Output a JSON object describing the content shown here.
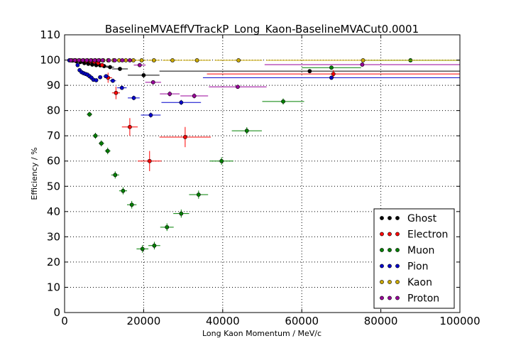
{
  "chart_data": {
    "type": "scatter",
    "title": "BaselineMVAEffVTrackP_Long_Kaon-BaselineMVACut0.0001",
    "xlabel": "Long Kaon Momentum / MeV/c",
    "ylabel": "Efficiency / %",
    "xlim": [
      0,
      100000
    ],
    "ylim": [
      0,
      110
    ],
    "xticks": [
      0,
      20000,
      40000,
      60000,
      80000,
      100000
    ],
    "xtick_labels": [
      "0",
      "20000",
      "40000",
      "60000",
      "80000",
      "100000"
    ],
    "yticks": [
      0,
      10,
      20,
      30,
      40,
      50,
      60,
      70,
      80,
      90,
      100,
      110
    ],
    "ytick_labels": [
      "0",
      "10",
      "20",
      "30",
      "40",
      "50",
      "60",
      "70",
      "80",
      "90",
      "100",
      "110"
    ],
    "grid": true,
    "legend_position": "lower-right",
    "series": [
      {
        "name": "Ghost",
        "color": "#000000",
        "points": [
          {
            "x": 2000,
            "y": 99.8,
            "xerr": 500,
            "yerr": 0.2
          },
          {
            "x": 3000,
            "y": 99.5,
            "xerr": 500,
            "yerr": 0.2
          },
          {
            "x": 4000,
            "y": 99.2,
            "xerr": 500,
            "yerr": 0.2
          },
          {
            "x": 5000,
            "y": 98.8,
            "xerr": 500,
            "yerr": 0.3
          },
          {
            "x": 6000,
            "y": 98.5,
            "xerr": 500,
            "yerr": 0.3
          },
          {
            "x": 7000,
            "y": 98.2,
            "xerr": 500,
            "yerr": 0.3
          },
          {
            "x": 8000,
            "y": 98.0,
            "xerr": 500,
            "yerr": 0.3
          },
          {
            "x": 9000,
            "y": 97.9,
            "xerr": 500,
            "yerr": 0.3
          },
          {
            "x": 10000,
            "y": 97.6,
            "xerr": 1000,
            "yerr": 0.4
          },
          {
            "x": 11500,
            "y": 97.2,
            "xerr": 1000,
            "yerr": 0.5
          },
          {
            "x": 14000,
            "y": 96.5,
            "xerr": 2000,
            "yerr": 0.6
          },
          {
            "x": 20000,
            "y": 94.0,
            "xerr": 4000,
            "yerr": 0.8
          },
          {
            "x": 62000,
            "y": 95.6,
            "xerr": 38000,
            "yerr": 0.6
          }
        ]
      },
      {
        "name": "Electron",
        "color": "#ff0000",
        "points": [
          {
            "x": 1500,
            "y": 99.9,
            "xerr": 500,
            "yerr": 0.2
          },
          {
            "x": 2500,
            "y": 99.9,
            "xerr": 500,
            "yerr": 0.2
          },
          {
            "x": 3500,
            "y": 99.8,
            "xerr": 500,
            "yerr": 0.2
          },
          {
            "x": 4500,
            "y": 99.8,
            "xerr": 500,
            "yerr": 0.3
          },
          {
            "x": 5500,
            "y": 99.6,
            "xerr": 500,
            "yerr": 0.3
          },
          {
            "x": 6500,
            "y": 99.5,
            "xerr": 500,
            "yerr": 0.4
          },
          {
            "x": 7500,
            "y": 99.3,
            "xerr": 500,
            "yerr": 0.5
          },
          {
            "x": 8500,
            "y": 98.8,
            "xerr": 500,
            "yerr": 0.6
          },
          {
            "x": 9500,
            "y": 98.0,
            "xerr": 500,
            "yerr": 0.8
          },
          {
            "x": 11000,
            "y": 93.0,
            "xerr": 1000,
            "yerr": 2.0
          },
          {
            "x": 13000,
            "y": 87.0,
            "xerr": 1000,
            "yerr": 2.5
          },
          {
            "x": 16500,
            "y": 73.5,
            "xerr": 2000,
            "yerr": 3.5
          },
          {
            "x": 21500,
            "y": 60.0,
            "xerr": 3000,
            "yerr": 4.0
          },
          {
            "x": 30500,
            "y": 69.5,
            "xerr": 6500,
            "yerr": 4.0
          },
          {
            "x": 68000,
            "y": 94.5,
            "xerr": 32000,
            "yerr": 1.5
          }
        ]
      },
      {
        "name": "Muon",
        "color": "#008000",
        "points": [
          {
            "x": 6300,
            "y": 78.5,
            "xerr": 700,
            "yerr": 1.0
          },
          {
            "x": 7800,
            "y": 70.0,
            "xerr": 700,
            "yerr": 1.2
          },
          {
            "x": 9300,
            "y": 67.0,
            "xerr": 700,
            "yerr": 1.2
          },
          {
            "x": 10900,
            "y": 64.0,
            "xerr": 700,
            "yerr": 1.3
          },
          {
            "x": 12800,
            "y": 54.5,
            "xerr": 1000,
            "yerr": 1.4
          },
          {
            "x": 14800,
            "y": 48.2,
            "xerr": 1000,
            "yerr": 1.4
          },
          {
            "x": 17000,
            "y": 42.7,
            "xerr": 1200,
            "yerr": 1.5
          },
          {
            "x": 19700,
            "y": 25.2,
            "xerr": 1500,
            "yerr": 1.5
          },
          {
            "x": 22700,
            "y": 26.5,
            "xerr": 1500,
            "yerr": 1.5
          },
          {
            "x": 25900,
            "y": 33.8,
            "xerr": 1700,
            "yerr": 1.5
          },
          {
            "x": 29500,
            "y": 39.2,
            "xerr": 2000,
            "yerr": 1.6
          },
          {
            "x": 33900,
            "y": 46.7,
            "xerr": 2400,
            "yerr": 1.6
          },
          {
            "x": 39700,
            "y": 60.0,
            "xerr": 3000,
            "yerr": 1.5
          },
          {
            "x": 46100,
            "y": 72.0,
            "xerr": 3800,
            "yerr": 1.4
          },
          {
            "x": 55300,
            "y": 83.6,
            "xerr": 5300,
            "yerr": 1.2
          },
          {
            "x": 67500,
            "y": 97.0,
            "xerr": 7500,
            "yerr": 0.5
          },
          {
            "x": 87500,
            "y": 99.9,
            "xerr": 12500,
            "yerr": 0.2
          }
        ]
      },
      {
        "name": "Pion",
        "color": "#0000cc",
        "points": [
          {
            "x": 1200,
            "y": 99.9,
            "xerr": 300,
            "yerr": 0.2
          },
          {
            "x": 3300,
            "y": 98.0,
            "xerr": 300,
            "yerr": 0.4
          },
          {
            "x": 3800,
            "y": 96.0,
            "xerr": 300,
            "yerr": 0.5
          },
          {
            "x": 4300,
            "y": 95.2,
            "xerr": 300,
            "yerr": 0.5
          },
          {
            "x": 4800,
            "y": 94.8,
            "xerr": 300,
            "yerr": 0.5
          },
          {
            "x": 5300,
            "y": 94.5,
            "xerr": 300,
            "yerr": 0.5
          },
          {
            "x": 5800,
            "y": 94.2,
            "xerr": 300,
            "yerr": 0.5
          },
          {
            "x": 6300,
            "y": 93.6,
            "xerr": 300,
            "yerr": 0.5
          },
          {
            "x": 6800,
            "y": 93.0,
            "xerr": 300,
            "yerr": 0.5
          },
          {
            "x": 7300,
            "y": 92.2,
            "xerr": 300,
            "yerr": 0.5
          },
          {
            "x": 8000,
            "y": 92.0,
            "xerr": 400,
            "yerr": 0.5
          },
          {
            "x": 9000,
            "y": 93.2,
            "xerr": 500,
            "yerr": 0.5
          },
          {
            "x": 10500,
            "y": 93.6,
            "xerr": 700,
            "yerr": 0.6
          },
          {
            "x": 12200,
            "y": 91.8,
            "xerr": 800,
            "yerr": 0.7
          },
          {
            "x": 14500,
            "y": 89.0,
            "xerr": 1200,
            "yerr": 0.8
          },
          {
            "x": 17500,
            "y": 85.0,
            "xerr": 1500,
            "yerr": 0.9
          },
          {
            "x": 21800,
            "y": 78.2,
            "xerr": 2500,
            "yerr": 1.0
          },
          {
            "x": 29500,
            "y": 83.2,
            "xerr": 5000,
            "yerr": 1.0
          },
          {
            "x": 67500,
            "y": 93.0,
            "xerr": 32500,
            "yerr": 0.8
          }
        ]
      },
      {
        "name": "Kaon",
        "color": "#ccaa00",
        "points": [
          {
            "x": 1800,
            "y": 99.9,
            "xerr": 300,
            "yerr": 0.1
          },
          {
            "x": 2800,
            "y": 99.9,
            "xerr": 300,
            "yerr": 0.1
          },
          {
            "x": 3800,
            "y": 99.9,
            "xerr": 300,
            "yerr": 0.1
          },
          {
            "x": 4800,
            "y": 99.9,
            "xerr": 300,
            "yerr": 0.1
          },
          {
            "x": 5800,
            "y": 99.9,
            "xerr": 300,
            "yerr": 0.1
          },
          {
            "x": 6800,
            "y": 99.9,
            "xerr": 300,
            "yerr": 0.1
          },
          {
            "x": 7800,
            "y": 99.9,
            "xerr": 300,
            "yerr": 0.1
          },
          {
            "x": 8800,
            "y": 99.9,
            "xerr": 300,
            "yerr": 0.1
          },
          {
            "x": 9800,
            "y": 99.9,
            "xerr": 300,
            "yerr": 0.1
          },
          {
            "x": 11000,
            "y": 99.9,
            "xerr": 500,
            "yerr": 0.1
          },
          {
            "x": 12400,
            "y": 99.9,
            "xerr": 600,
            "yerr": 0.1
          },
          {
            "x": 13800,
            "y": 99.9,
            "xerr": 700,
            "yerr": 0.1
          },
          {
            "x": 15500,
            "y": 99.9,
            "xerr": 800,
            "yerr": 0.1
          },
          {
            "x": 17400,
            "y": 99.9,
            "xerr": 1000,
            "yerr": 0.1
          },
          {
            "x": 19500,
            "y": 99.9,
            "xerr": 1200,
            "yerr": 0.1
          },
          {
            "x": 22600,
            "y": 99.9,
            "xerr": 1500,
            "yerr": 0.1
          },
          {
            "x": 27300,
            "y": 99.9,
            "xerr": 2500,
            "yerr": 0.1
          },
          {
            "x": 33500,
            "y": 99.9,
            "xerr": 3500,
            "yerr": 0.1
          },
          {
            "x": 44000,
            "y": 99.9,
            "xerr": 6000,
            "yerr": 0.1
          },
          {
            "x": 75500,
            "y": 99.9,
            "xerr": 24500,
            "yerr": 0.1
          }
        ]
      },
      {
        "name": "Proton",
        "color": "#990099",
        "points": [
          {
            "x": 1600,
            "y": 99.9,
            "xerr": 300,
            "yerr": 0.2
          },
          {
            "x": 2600,
            "y": 99.9,
            "xerr": 300,
            "yerr": 0.2
          },
          {
            "x": 3600,
            "y": 99.9,
            "xerr": 300,
            "yerr": 0.2
          },
          {
            "x": 4600,
            "y": 99.9,
            "xerr": 300,
            "yerr": 0.2
          },
          {
            "x": 5600,
            "y": 99.9,
            "xerr": 300,
            "yerr": 0.2
          },
          {
            "x": 6600,
            "y": 99.9,
            "xerr": 300,
            "yerr": 0.2
          },
          {
            "x": 7600,
            "y": 99.9,
            "xerr": 300,
            "yerr": 0.2
          },
          {
            "x": 8600,
            "y": 99.9,
            "xerr": 300,
            "yerr": 0.2
          },
          {
            "x": 9600,
            "y": 99.9,
            "xerr": 400,
            "yerr": 0.2
          },
          {
            "x": 11200,
            "y": 99.9,
            "xerr": 500,
            "yerr": 0.2
          },
          {
            "x": 12700,
            "y": 99.9,
            "xerr": 600,
            "yerr": 0.2
          },
          {
            "x": 14600,
            "y": 99.9,
            "xerr": 700,
            "yerr": 0.2
          },
          {
            "x": 16500,
            "y": 99.9,
            "xerr": 800,
            "yerr": 0.3
          },
          {
            "x": 19000,
            "y": 98.0,
            "xerr": 1500,
            "yerr": 0.5
          },
          {
            "x": 22400,
            "y": 91.2,
            "xerr": 2000,
            "yerr": 0.8
          },
          {
            "x": 26600,
            "y": 86.6,
            "xerr": 2500,
            "yerr": 1.0
          },
          {
            "x": 32800,
            "y": 85.8,
            "xerr": 3500,
            "yerr": 1.0
          },
          {
            "x": 43800,
            "y": 89.4,
            "xerr": 7300,
            "yerr": 0.8
          },
          {
            "x": 75300,
            "y": 98.2,
            "xerr": 24700,
            "yerr": 0.5
          }
        ]
      }
    ]
  }
}
